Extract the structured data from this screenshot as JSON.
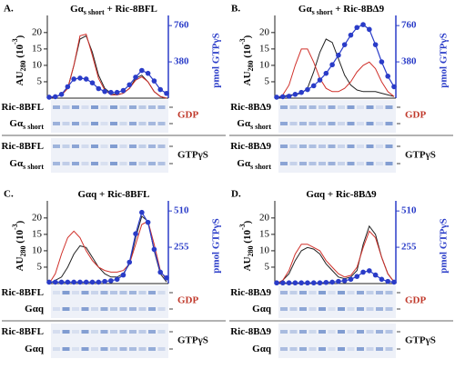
{
  "chart_data": [
    {
      "type": "line",
      "panel": "A.",
      "title": [
        {
          "text": "Gα"
        },
        {
          "text": "s short",
          "sub": true
        },
        {
          "text": " + Ric-8BFL"
        }
      ],
      "ylabel": [
        {
          "text": "AU"
        },
        {
          "text": "280",
          "sub": true
        },
        {
          "text": " (10"
        },
        {
          "text": "-3",
          "sup": true
        },
        {
          "text": ")"
        }
      ],
      "y2label": "pmol GTPγS",
      "categories": [
        null,
        null,
        null,
        null,
        null,
        null,
        null,
        null,
        null,
        null,
        null,
        null,
        null,
        null,
        null,
        null,
        null,
        null,
        null,
        null
      ],
      "ylim": [
        0,
        23
      ],
      "yticks": [
        5,
        10,
        15,
        20
      ],
      "y2lim": [
        0,
        790
      ],
      "y2ticks": [
        380,
        760
      ],
      "series": [
        {
          "color": "#222222",
          "values": [
            0,
            0.5,
            1,
            3,
            10,
            18,
            19,
            14,
            7,
            3,
            1.5,
            1,
            1.5,
            3,
            6,
            7,
            5,
            2,
            0.5,
            0
          ]
        },
        {
          "color": "#d0302a",
          "values": [
            0,
            0.5,
            1,
            3,
            10,
            19,
            19.5,
            13,
            6,
            2.5,
            1,
            1,
            1.5,
            3,
            5.5,
            6.5,
            5,
            2,
            0.5,
            0
          ]
        },
        {
          "color": "#2a3cc8",
          "axis": "y2",
          "markers": true,
          "values": [
            10,
            15,
            40,
            120,
            200,
            210,
            200,
            160,
            100,
            70,
            60,
            60,
            80,
            140,
            220,
            290,
            260,
            180,
            90,
            50
          ]
        }
      ],
      "gel": {
        "rows": [
          [
            {
              "text": "Ric-8BFL"
            }
          ],
          [
            {
              "text": "Gα"
            },
            {
              "text": "s short",
              "sub": true
            }
          ],
          [
            {
              "text": "Ric-8BFL"
            }
          ],
          [
            {
              "text": "Gα"
            },
            {
              "text": "s short",
              "sub": true
            }
          ]
        ],
        "conditions": [
          {
            "text": "GDP",
            "color": "#c0392b"
          },
          {
            "text": "GTPγS",
            "color": "#111111"
          }
        ]
      }
    },
    {
      "type": "line",
      "panel": "B.",
      "title": [
        {
          "text": "Gα"
        },
        {
          "text": "s short",
          "sub": true
        },
        {
          "text": " + Ric-8BΔ9"
        }
      ],
      "ylabel": [
        {
          "text": "AU"
        },
        {
          "text": "280",
          "sub": true
        },
        {
          "text": " (10"
        },
        {
          "text": "-3",
          "sup": true
        },
        {
          "text": ")"
        }
      ],
      "y2label": "pmol GTPγS",
      "categories": [
        null,
        null,
        null,
        null,
        null,
        null,
        null,
        null,
        null,
        null,
        null,
        null,
        null,
        null,
        null,
        null,
        null,
        null,
        null,
        null
      ],
      "ylim": [
        0,
        23
      ],
      "yticks": [
        5,
        10,
        15,
        20
      ],
      "y2lim": [
        0,
        790
      ],
      "y2ticks": [
        380,
        760
      ],
      "series": [
        {
          "color": "#222222",
          "values": [
            0,
            0.5,
            1,
            1,
            1.5,
            3,
            8,
            14,
            18,
            17,
            12,
            7,
            4,
            2.5,
            2,
            2,
            2,
            1.5,
            1,
            0.5
          ]
        },
        {
          "color": "#d0302a",
          "values": [
            0,
            1,
            4,
            10,
            15,
            15,
            11,
            6,
            3,
            2,
            2,
            3,
            5,
            8,
            10,
            11,
            9,
            5,
            2,
            0.5
          ]
        },
        {
          "color": "#2a3cc8",
          "axis": "y2",
          "markers": true,
          "values": [
            10,
            15,
            20,
            40,
            60,
            90,
            130,
            190,
            260,
            350,
            450,
            560,
            660,
            740,
            770,
            720,
            560,
            380,
            230,
            120
          ]
        }
      ],
      "gel": {
        "rows": [
          [
            {
              "text": "Ric-8BΔ9"
            }
          ],
          [
            {
              "text": "Gα"
            },
            {
              "text": "s short",
              "sub": true
            }
          ],
          [
            {
              "text": "Ric-8BΔ9"
            }
          ],
          [
            {
              "text": "Gα"
            },
            {
              "text": "s short",
              "sub": true
            }
          ]
        ],
        "conditions": [
          {
            "text": "GDP",
            "color": "#c0392b"
          },
          {
            "text": "GTPγS",
            "color": "#111111"
          }
        ]
      }
    },
    {
      "type": "line",
      "panel": "C.",
      "title": [
        {
          "text": "Gαq + Ric-8BFL"
        }
      ],
      "ylabel": [
        {
          "text": "AU"
        },
        {
          "text": "280",
          "sub": true
        },
        {
          "text": " (10"
        },
        {
          "text": "-3",
          "sup": true
        },
        {
          "text": ")"
        }
      ],
      "y2label": "pmol GTPγS",
      "categories": [
        null,
        null,
        null,
        null,
        null,
        null,
        null,
        null,
        null,
        null,
        null,
        null,
        null,
        null,
        null,
        null,
        null,
        null,
        null,
        null
      ],
      "ylim": [
        0,
        23
      ],
      "yticks": [
        5,
        10,
        15,
        20
      ],
      "y2lim": [
        0,
        530
      ],
      "y2ticks": [
        255,
        510
      ],
      "series": [
        {
          "color": "#222222",
          "values": [
            0,
            1,
            2,
            5,
            9,
            11.5,
            11,
            8,
            5,
            3,
            2,
            2,
            3,
            6,
            14,
            20.5,
            19,
            10,
            3,
            0.5
          ]
        },
        {
          "color": "#d0302a",
          "values": [
            0,
            3,
            9,
            14,
            16,
            14,
            10,
            7,
            5,
            4,
            3.5,
            3.5,
            4,
            6,
            12,
            18,
            19,
            12,
            4,
            1
          ]
        },
        {
          "color": "#2a3cc8",
          "axis": "y2",
          "markers": true,
          "values": [
            10,
            10,
            10,
            10,
            10,
            10,
            10,
            10,
            10,
            15,
            20,
            30,
            60,
            150,
            350,
            500,
            430,
            240,
            80,
            40
          ]
        }
      ],
      "gel": {
        "rows": [
          [
            {
              "text": "Ric-8BFL"
            }
          ],
          [
            {
              "text": "Gαq"
            }
          ],
          [
            {
              "text": "Ric-8BFL"
            }
          ],
          [
            {
              "text": "Gαq"
            }
          ]
        ],
        "conditions": [
          {
            "text": "GDP",
            "color": "#c0392b"
          },
          {
            "text": "GTPγS",
            "color": "#111111"
          }
        ]
      }
    },
    {
      "type": "line",
      "panel": "D.",
      "title": [
        {
          "text": "Gαq + Ric-8BΔ9"
        }
      ],
      "ylabel": [
        {
          "text": "AU"
        },
        {
          "text": "280",
          "sub": true
        },
        {
          "text": " (10"
        },
        {
          "text": "-3",
          "sup": true
        },
        {
          "text": ")"
        }
      ],
      "y2label": "pmol GTPγS",
      "categories": [
        null,
        null,
        null,
        null,
        null,
        null,
        null,
        null,
        null,
        null,
        null,
        null,
        null,
        null,
        null,
        null,
        null,
        null,
        null,
        null
      ],
      "ylim": [
        0,
        23
      ],
      "yticks": [
        5,
        10,
        15,
        20
      ],
      "y2lim": [
        0,
        530
      ],
      "y2ticks": [
        255,
        510
      ],
      "series": [
        {
          "color": "#222222",
          "values": [
            0,
            1,
            3,
            7,
            10,
            11,
            10.5,
            9,
            6,
            4,
            2,
            1.5,
            2,
            4,
            12,
            17.5,
            15,
            8,
            3,
            0.5
          ]
        },
        {
          "color": "#d0302a",
          "values": [
            0,
            1,
            4,
            9,
            12,
            12,
            11,
            10,
            7,
            5,
            3,
            2,
            2.5,
            5,
            11,
            16,
            14,
            8,
            3,
            0.5
          ]
        },
        {
          "color": "#2a3cc8",
          "axis": "y2",
          "markers": true,
          "values": [
            5,
            5,
            5,
            5,
            5,
            5,
            5,
            5,
            8,
            10,
            15,
            20,
            30,
            50,
            80,
            90,
            60,
            30,
            15,
            10
          ]
        }
      ],
      "gel": {
        "rows": [
          [
            {
              "text": "Ric-8BΔ9"
            }
          ],
          [
            {
              "text": "Gαq"
            }
          ],
          [
            {
              "text": "Ric-8BΔ9"
            }
          ],
          [
            {
              "text": "Gαq"
            }
          ]
        ],
        "conditions": [
          {
            "text": "GDP",
            "color": "#c0392b"
          },
          {
            "text": "GTPγS",
            "color": "#111111"
          }
        ]
      }
    }
  ]
}
